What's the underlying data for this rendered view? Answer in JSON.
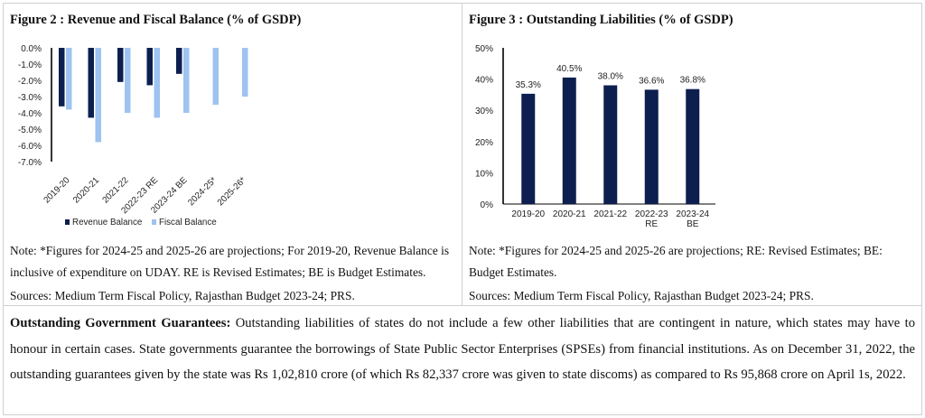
{
  "fig2": {
    "title": "Figure  2 : Revenue and Fiscal Balance (% of GSDP)",
    "note": "Note: *Figures for 2024-25 and 2025-26 are projections; For 2019-20, Revenue Balance is inclusive of expenditure on UDAY. RE is Revised Estimates; BE is Budget Estimates.",
    "sources": "Sources: Medium Term Fiscal Policy, Rajasthan Budget 2023-24; PRS.",
    "chart_data": {
      "type": "bar",
      "categories": [
        "2019-20",
        "2020-21",
        "2021-22",
        "2022-23 RE",
        "2023-24 BE",
        "2024-25*",
        "2025-26*"
      ],
      "series": [
        {
          "name": "Revenue Balance",
          "color": "#0d1f4f",
          "values": [
            -3.6,
            -4.3,
            -2.1,
            -2.3,
            -1.6,
            null,
            null
          ]
        },
        {
          "name": "Fiscal Balance",
          "color": "#9ec3f0",
          "values": [
            -3.8,
            -5.8,
            -4.0,
            -4.3,
            -4.0,
            -3.5,
            -3.0
          ]
        }
      ],
      "yticks": [
        "0.0%",
        "-1.0%",
        "-2.0%",
        "-3.0%",
        "-4.0%",
        "-5.0%",
        "-6.0%",
        "-7.0%"
      ],
      "ylim": [
        -7,
        0
      ],
      "legend": "bottom"
    }
  },
  "fig3": {
    "title": "Figure  3 : Outstanding Liabilities (% of GSDP)",
    "note": "Note: *Figures for 2024-25 and 2025-26 are projections; RE: Revised Estimates; BE: Budget Estimates.",
    "sources": "Sources: Medium Term Fiscal Policy, Rajasthan Budget 2023-24; PRS.",
    "chart_data": {
      "type": "bar",
      "categories": [
        "2019-20",
        "2020-21",
        "2021-22",
        "2022-23 RE",
        "2023-24 BE"
      ],
      "values": [
        35.3,
        40.5,
        38.0,
        36.6,
        36.8
      ],
      "data_labels": [
        "35.3%",
        "40.5%",
        "38.0%",
        "36.6%",
        "36.8%"
      ],
      "color": "#0d1f4f",
      "yticks": [
        "0%",
        "10%",
        "20%",
        "30%",
        "40%",
        "50%"
      ],
      "ylim": [
        0,
        50
      ]
    }
  },
  "guarantees": {
    "heading": "Outstanding Government Guarantees:",
    "body": " Outstanding liabilities of states do not include a few other liabilities that are contingent in nature, which states may have to honour in certain cases. State governments guarantee the borrowings of State Public Sector Enterprises (SPSEs) from financial institutions.  As on December 31, 2022, the outstanding guarantees given by the state was Rs 1,02,810 crore (of which Rs 82,337 crore was given to state discoms) as compared to Rs 95,868 crore on April 1s, 2022."
  }
}
